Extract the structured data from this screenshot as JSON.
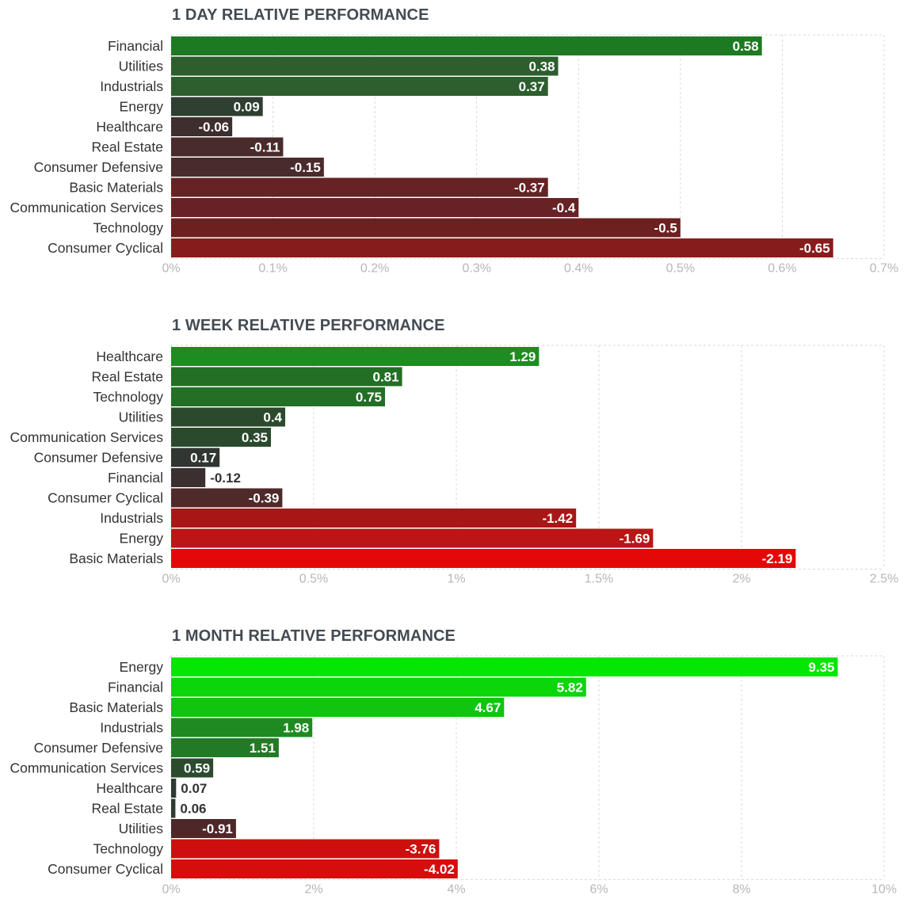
{
  "chart_data": [
    {
      "type": "bar",
      "orientation": "horizontal",
      "title": "1 DAY RELATIVE PERFORMANCE",
      "categories": [
        "Financial",
        "Utilities",
        "Industrials",
        "Energy",
        "Healthcare",
        "Real Estate",
        "Consumer Defensive",
        "Basic Materials",
        "Communication Services",
        "Technology",
        "Consumer Cyclical"
      ],
      "values": [
        0.58,
        0.38,
        0.37,
        0.09,
        -0.06,
        -0.11,
        -0.15,
        -0.37,
        -0.4,
        -0.5,
        -0.65
      ],
      "value_labels": [
        "0.58",
        "0.38",
        "0.37",
        "0.09",
        "-0.06",
        "-0.11",
        "-0.15",
        "-0.37",
        "-0.4",
        "-0.5",
        "-0.65"
      ],
      "colors": [
        "#1e7a22",
        "#2d5e2e",
        "#2d5e2e",
        "#2f3f31",
        "#3f2e2e",
        "#4a2b2c",
        "#4a2b2c",
        "#662224",
        "#662224",
        "#6c2020",
        "#871c1c"
      ],
      "xlim": [
        0,
        0.7
      ],
      "xticks": [
        "0%",
        "0.1%",
        "0.2%",
        "0.3%",
        "0.4%",
        "0.5%",
        "0.6%",
        "0.7%"
      ],
      "grid": true
    },
    {
      "type": "bar",
      "orientation": "horizontal",
      "title": "1 WEEK RELATIVE PERFORMANCE",
      "categories": [
        "Healthcare",
        "Real Estate",
        "Technology",
        "Utilities",
        "Communication Services",
        "Consumer Defensive",
        "Financial",
        "Consumer Cyclical",
        "Industrials",
        "Energy",
        "Basic Materials"
      ],
      "values": [
        1.29,
        0.81,
        0.75,
        0.4,
        0.35,
        0.17,
        -0.12,
        -0.39,
        -1.42,
        -1.69,
        -2.19
      ],
      "value_labels": [
        "1.29",
        "0.81",
        "0.75",
        "0.4",
        "0.35",
        "0.17",
        "-0.12",
        "-0.39",
        "-1.42",
        "-1.69",
        "-2.19"
      ],
      "colors": [
        "#1e8c20",
        "#236f25",
        "#236f25",
        "#2b4a2d",
        "#2b4a2d",
        "#303631",
        "#3b2f30",
        "#4e2a2b",
        "#a81717",
        "#bb1515",
        "#e40808"
      ],
      "xlim": [
        0,
        2.5
      ],
      "xticks": [
        "0%",
        "0.5%",
        "1%",
        "1.5%",
        "2%",
        "2.5%"
      ],
      "grid": true
    },
    {
      "type": "bar",
      "orientation": "horizontal",
      "title": "1 MONTH RELATIVE PERFORMANCE",
      "categories": [
        "Energy",
        "Financial",
        "Basic Materials",
        "Industrials",
        "Consumer Defensive",
        "Communication Services",
        "Healthcare",
        "Real Estate",
        "Utilities",
        "Technology",
        "Consumer Cyclical"
      ],
      "values": [
        9.35,
        5.82,
        4.67,
        1.98,
        1.51,
        0.59,
        0.07,
        0.06,
        -0.91,
        -3.76,
        -4.02
      ],
      "value_labels": [
        "9.35",
        "5.82",
        "4.67",
        "1.98",
        "1.51",
        "0.59",
        "0.07",
        "0.06",
        "-0.91",
        "-3.76",
        "-4.02"
      ],
      "colors": [
        "#06e604",
        "#0ad60a",
        "#10c410",
        "#1f8a22",
        "#237a26",
        "#2c4a2e",
        "#2f3a31",
        "#2f3a31",
        "#4e2829",
        "#cc1010",
        "#d50d0d"
      ],
      "xlim": [
        0,
        10
      ],
      "xticks": [
        "0%",
        "2%",
        "4%",
        "6%",
        "8%",
        "10%"
      ],
      "grid": true
    }
  ]
}
